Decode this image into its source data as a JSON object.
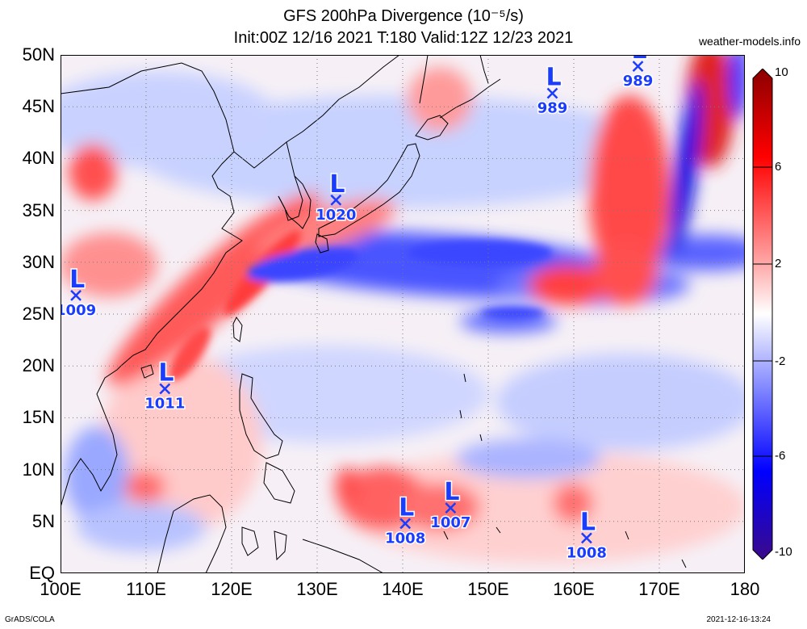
{
  "title": {
    "line1": "GFS 200hPa Divergence (10⁻⁵/s)",
    "line2": "Init:00Z 12/16 2021  T:180  Valid:12Z 12/23 2021"
  },
  "brand": "weather-models.info",
  "footer": {
    "left": "GrADS/COLA",
    "right": "2021-12-16-13:24"
  },
  "map": {
    "lon_range": [
      100,
      180
    ],
    "lat_range": [
      0,
      50
    ],
    "grid": "dotted",
    "y_ticks": [
      "50N",
      "45N",
      "40N",
      "35N",
      "30N",
      "25N",
      "20N",
      "15N",
      "10N",
      "5N",
      "EQ"
    ],
    "x_ticks": [
      "100E",
      "110E",
      "120E",
      "130E",
      "140E",
      "150E",
      "160E",
      "170E",
      "180"
    ]
  },
  "colorbar": {
    "labels": [
      "10",
      "6",
      "2",
      "-2",
      "-6",
      "-10"
    ],
    "colors": [
      "#8b0000",
      "#ff0000",
      "#ff9a9a",
      "#ffffff",
      "#9aa0ff",
      "#0000ff",
      "#3b0a8a"
    ]
  },
  "lows": [
    {
      "symbol": "L",
      "value": "989",
      "lon": 157.5,
      "lat": 46.3
    },
    {
      "symbol": "L",
      "value": "989",
      "lon": 167.5,
      "lat": 48.9
    },
    {
      "symbol": "L",
      "value": "1020",
      "lon": 132.2,
      "lat": 36.0
    },
    {
      "symbol": "L",
      "value": "1009",
      "lon": 101.8,
      "lat": 26.8
    },
    {
      "symbol": "L",
      "value": "1011",
      "lon": 112.2,
      "lat": 17.8
    },
    {
      "symbol": "L",
      "value": "1008",
      "lon": 140.3,
      "lat": 4.8
    },
    {
      "symbol": "L",
      "value": "1007",
      "lon": 145.6,
      "lat": 6.3
    },
    {
      "symbol": "L",
      "value": "1008",
      "lon": 161.5,
      "lat": 3.4
    }
  ]
}
